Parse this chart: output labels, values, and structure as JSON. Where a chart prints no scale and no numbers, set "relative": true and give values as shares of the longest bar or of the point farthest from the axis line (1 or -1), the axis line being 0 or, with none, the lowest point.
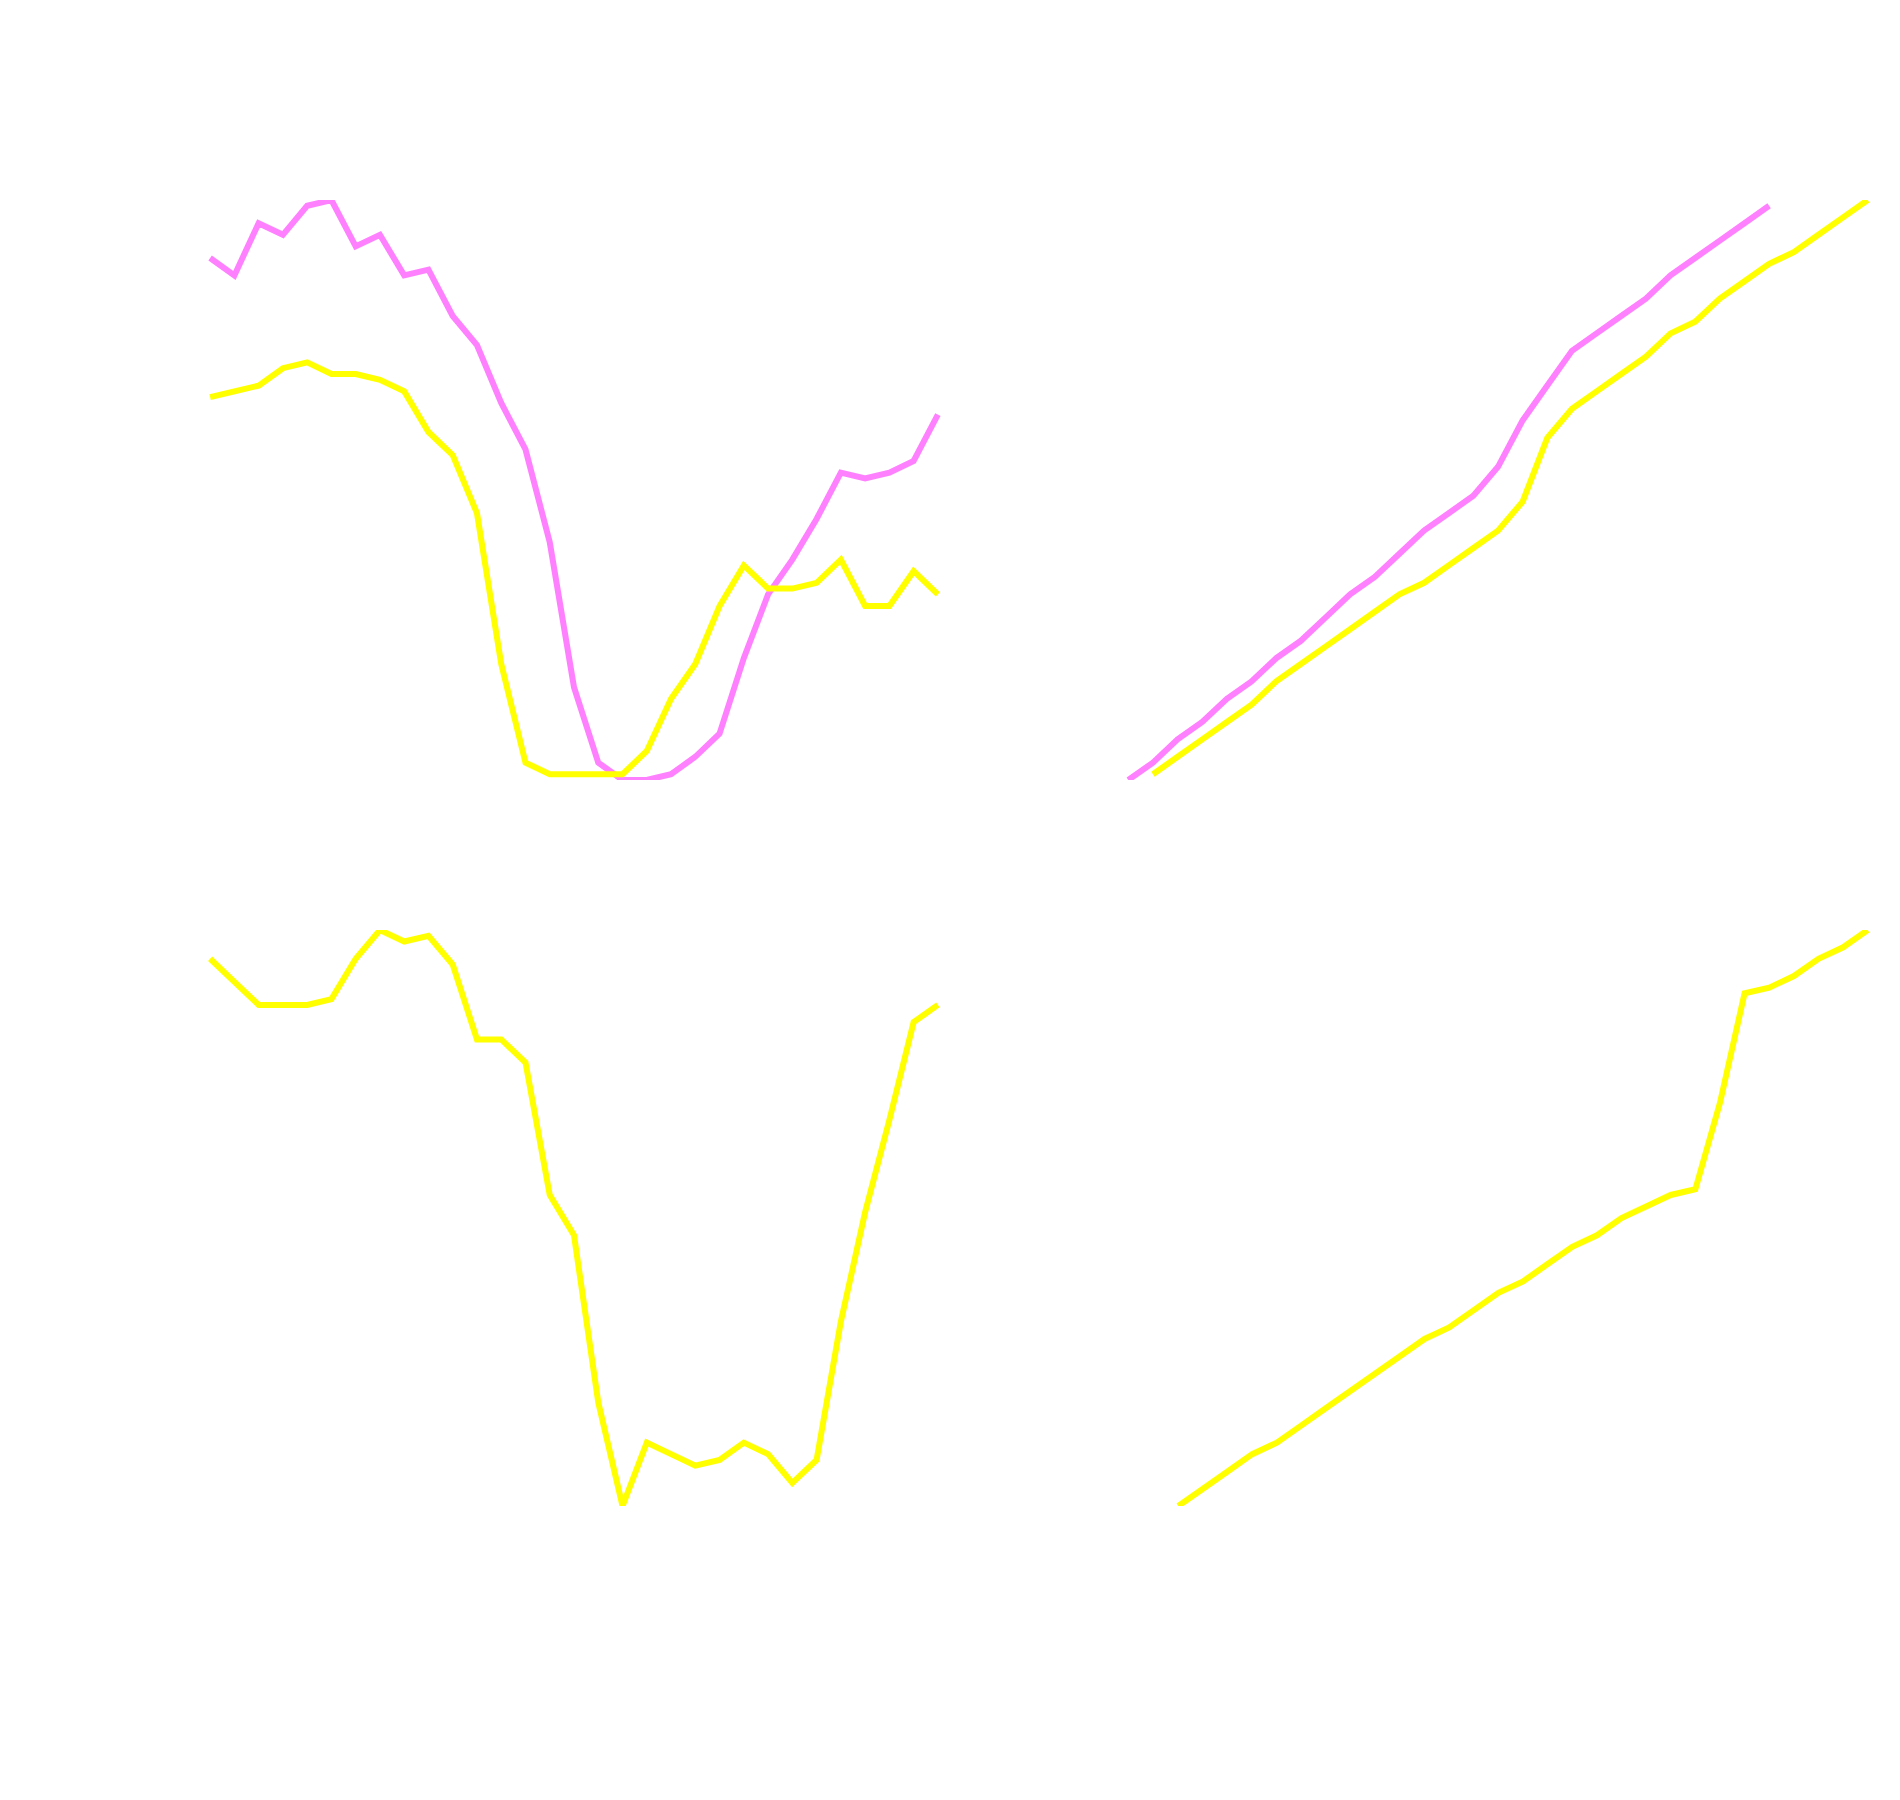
{
  "chart_data": [
    {
      "type": "line",
      "relative": true,
      "categories": [
        null,
        null,
        null,
        null,
        null,
        null,
        null,
        null,
        null,
        null,
        null,
        null,
        null,
        null,
        null,
        null,
        null,
        null,
        null,
        null,
        null,
        null,
        null,
        null,
        null,
        null,
        null,
        null,
        null,
        null,
        null
      ],
      "series": [
        {
          "color": "#ff80ff",
          "values": [
            0.9,
            0.87,
            0.96,
            0.94,
            0.99,
            1.0,
            0.92,
            0.94,
            0.87,
            0.88,
            0.8,
            0.75,
            0.65,
            0.57,
            0.41,
            0.16,
            0.03,
            0.0,
            0.0,
            0.01,
            0.04,
            0.08,
            0.21,
            0.32,
            0.38,
            0.45,
            0.53,
            0.52,
            0.53,
            0.55,
            0.63
          ]
        },
        {
          "color": "#ffff00",
          "values": [
            0.66,
            0.67,
            0.68,
            0.71,
            0.72,
            0.7,
            0.7,
            0.69,
            0.67,
            0.6,
            0.56,
            0.46,
            0.2,
            0.03,
            0.01,
            0.01,
            0.01,
            0.01,
            0.05,
            0.14,
            0.2,
            0.3,
            0.37,
            0.33,
            0.33,
            0.34,
            0.38,
            0.3,
            0.3,
            0.36,
            0.32
          ]
        }
      ]
    },
    {
      "type": "line",
      "relative": true,
      "categories": [
        null,
        null,
        null,
        null,
        null,
        null,
        null,
        null,
        null,
        null,
        null,
        null,
        null,
        null,
        null,
        null,
        null,
        null,
        null,
        null,
        null,
        null,
        null,
        null,
        null,
        null,
        null,
        null,
        null,
        null,
        null
      ],
      "series": [
        {
          "color": "#ff80ff",
          "values": [
            0.0,
            0.03,
            0.07,
            0.1,
            0.14,
            0.17,
            0.21,
            0.24,
            0.28,
            0.32,
            0.35,
            0.39,
            0.43,
            0.46,
            0.49,
            0.54,
            0.62,
            0.68,
            0.74,
            0.77,
            0.8,
            0.83,
            0.87,
            0.9,
            0.93,
            0.96,
            0.99,
            null,
            null,
            null,
            null
          ]
        },
        {
          "color": "#ffff00",
          "values": [
            null,
            0.01,
            0.04,
            0.07,
            0.1,
            0.13,
            0.17,
            0.2,
            0.23,
            0.26,
            0.29,
            0.32,
            0.34,
            0.37,
            0.4,
            0.43,
            0.48,
            0.59,
            0.64,
            0.67,
            0.7,
            0.73,
            0.77,
            0.79,
            0.83,
            0.86,
            0.89,
            0.91,
            0.94,
            0.97,
            1.0
          ]
        }
      ]
    },
    {
      "type": "line",
      "relative": true,
      "categories": [
        null,
        null,
        null,
        null,
        null,
        null,
        null,
        null,
        null,
        null,
        null,
        null,
        null,
        null,
        null,
        null,
        null,
        null,
        null,
        null,
        null,
        null,
        null,
        null,
        null,
        null,
        null,
        null,
        null,
        null,
        null
      ],
      "series": [
        {
          "color": "#ffff00",
          "values": [
            0.95,
            0.91,
            0.87,
            0.87,
            0.87,
            0.88,
            0.95,
            1.0,
            0.98,
            0.99,
            0.94,
            0.81,
            0.81,
            0.77,
            0.54,
            0.47,
            0.18,
            0.0,
            0.11,
            0.09,
            0.07,
            0.08,
            0.11,
            0.09,
            0.04,
            0.08,
            0.32,
            0.51,
            0.67,
            0.84,
            0.87
          ]
        }
      ]
    },
    {
      "type": "line",
      "relative": true,
      "categories": [
        null,
        null,
        null,
        null,
        null,
        null,
        null,
        null,
        null,
        null,
        null,
        null,
        null,
        null,
        null,
        null,
        null,
        null,
        null,
        null,
        null,
        null,
        null,
        null,
        null,
        null,
        null,
        null,
        null
      ],
      "series": [
        {
          "color": "#ffff00",
          "values": [
            0.0,
            0.03,
            0.06,
            0.09,
            0.11,
            0.14,
            0.17,
            0.2,
            0.23,
            0.26,
            0.29,
            0.31,
            0.34,
            0.37,
            0.39,
            0.42,
            0.45,
            0.47,
            0.5,
            0.52,
            0.54,
            0.55,
            0.7,
            0.89,
            0.9,
            0.92,
            0.95,
            0.97,
            1.0
          ]
        }
      ]
    }
  ]
}
